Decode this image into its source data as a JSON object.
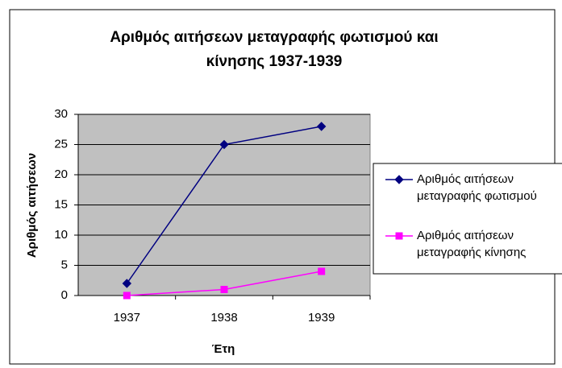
{
  "chart_data": {
    "type": "line",
    "title": "Αριθμός αιτήσεων μεταγραφής φωτισμού και κίνησης 1937-1939",
    "x_label": "Έτη",
    "y_label": "Αριθμός αιτήσεων",
    "categories": [
      "1937",
      "1938",
      "1939"
    ],
    "series": [
      {
        "name": "Αριθμός αιτήσεων μεταγραφής φωτισμού",
        "color": "#000080",
        "marker": "diamond",
        "values": [
          2,
          25,
          28
        ]
      },
      {
        "name": "Αριθμός αιτήσεων μεταγραφής κίνησης",
        "color": "#ff00ff",
        "marker": "square",
        "values": [
          0,
          1,
          4
        ]
      }
    ],
    "ylim": [
      0,
      30
    ],
    "yticks": [
      0,
      5,
      10,
      15,
      20,
      25,
      30
    ],
    "grid": true,
    "legend": "right"
  }
}
